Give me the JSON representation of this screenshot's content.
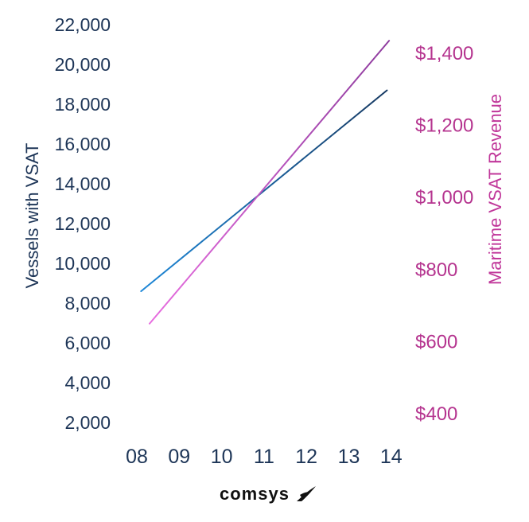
{
  "chart_data": {
    "type": "line",
    "x": [
      "08",
      "09",
      "10",
      "11",
      "12",
      "13",
      "14"
    ],
    "y_left": {
      "label": "Vessels with VSAT",
      "ticks": [
        "2,000",
        "4,000",
        "6,000",
        "8,000",
        "10,000",
        "12,000",
        "14,000",
        "16,000",
        "18,000",
        "20,000",
        "22,000"
      ],
      "tick_values": [
        2000,
        4000,
        6000,
        8000,
        10000,
        12000,
        14000,
        16000,
        18000,
        20000,
        22000
      ],
      "range": [
        2000,
        22000
      ],
      "color": "#1d3557"
    },
    "y_right": {
      "label": "Maritime VSAT Revenue",
      "ticks": [
        "$400",
        "$600",
        "$800",
        "$1,000",
        "$1,200",
        "$1,400"
      ],
      "tick_values": [
        400,
        600,
        800,
        1000,
        1200,
        1400
      ],
      "color": "#b5348f"
    },
    "series": [
      {
        "axis": "left",
        "color_start": "#1e88d8",
        "color_end": "#173a63",
        "start": {
          "x": 8.1,
          "y": 8600
        },
        "end": {
          "x": 13.9,
          "y": 18700
        }
      },
      {
        "axis": "right",
        "color_start": "#e86ee0",
        "color_end": "#8e3c9e",
        "start": {
          "x": 8.3,
          "y": 650
        },
        "end": {
          "x": 13.95,
          "y": 1435
        }
      }
    ],
    "grid": true,
    "legend": "none"
  },
  "logo": {
    "text": "comsys",
    "mark": "comsys-swoosh-icon"
  }
}
